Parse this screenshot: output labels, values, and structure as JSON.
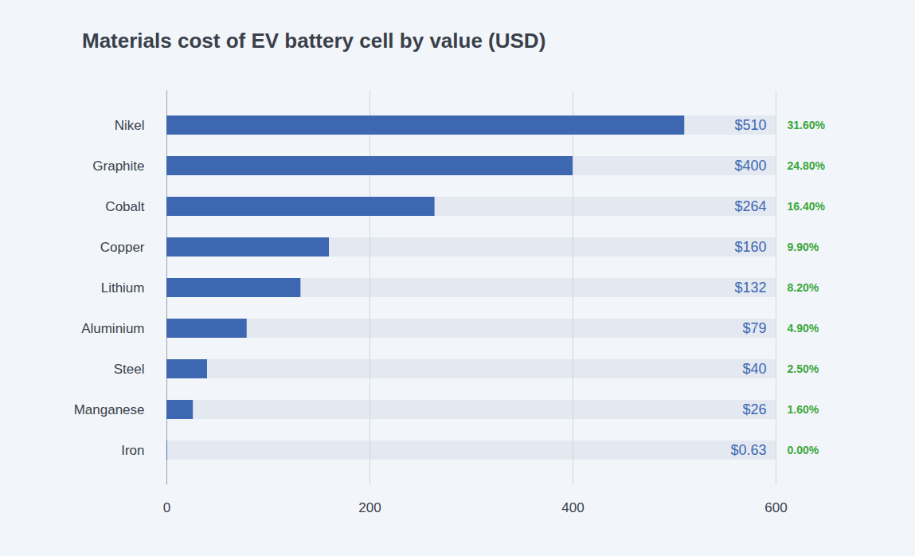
{
  "chart_data": {
    "type": "bar",
    "orientation": "horizontal",
    "title": "Materials cost of EV battery cell by value (USD)",
    "categories": [
      "Nikel",
      "Graphite",
      "Cobalt",
      "Copper",
      "Lithium",
      "Aluminium",
      "Steel",
      "Manganese",
      "Iron"
    ],
    "values": [
      510,
      400,
      264,
      160,
      132,
      79,
      40,
      26,
      0.63
    ],
    "value_labels": [
      "$510",
      "$400",
      "$264",
      "$160",
      "$132",
      "$79",
      "$40",
      "$26",
      "$0.63"
    ],
    "shares": [
      31.6,
      24.8,
      16.4,
      9.9,
      8.2,
      4.9,
      2.5,
      1.6,
      0.0
    ],
    "share_labels": [
      "31.60%",
      "24.80%",
      "16.40%",
      "9.90%",
      "8.20%",
      "4.90%",
      "2.50%",
      "1.60%",
      "0.00%"
    ],
    "color": "#3d67b1",
    "xlim": [
      0,
      600
    ],
    "xticks": [
      0,
      200,
      400,
      600
    ],
    "grid": true,
    "data_labels": true
  }
}
